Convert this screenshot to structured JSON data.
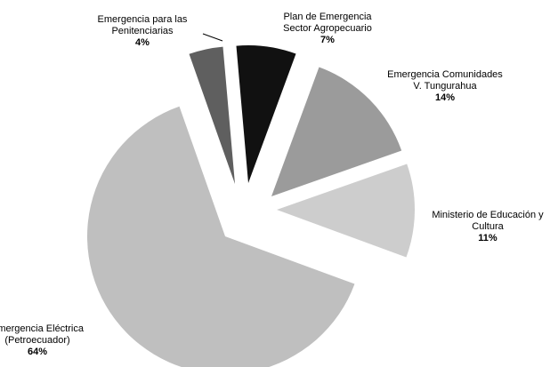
{
  "chart_data": {
    "type": "pie",
    "title": "",
    "legend": "none",
    "slices": [
      {
        "label_lines": [
          "Plan de Emergencia",
          "Sector Agropecuario"
        ],
        "value": 7,
        "value_label": "7%",
        "color": "#111111"
      },
      {
        "label_lines": [
          "Emergencia Comunidades",
          "V. Tungurahua"
        ],
        "value": 14,
        "value_label": "14%",
        "color": "#9b9b9b"
      },
      {
        "label_lines": [
          "Ministerio de Educación y",
          "Cultura"
        ],
        "value": 11,
        "value_label": "11%",
        "color": "#cdcdcd"
      },
      {
        "label_lines": [
          "Emergencia Eléctrica",
          "(Petroecuador)"
        ],
        "value": 64,
        "value_label": "64%",
        "color": "#bfbfbf"
      },
      {
        "label_lines": [
          "Emergencia para las",
          "Penitenciarias"
        ],
        "value": 4,
        "value_label": "4%",
        "color": "#5f5f5f"
      }
    ]
  }
}
